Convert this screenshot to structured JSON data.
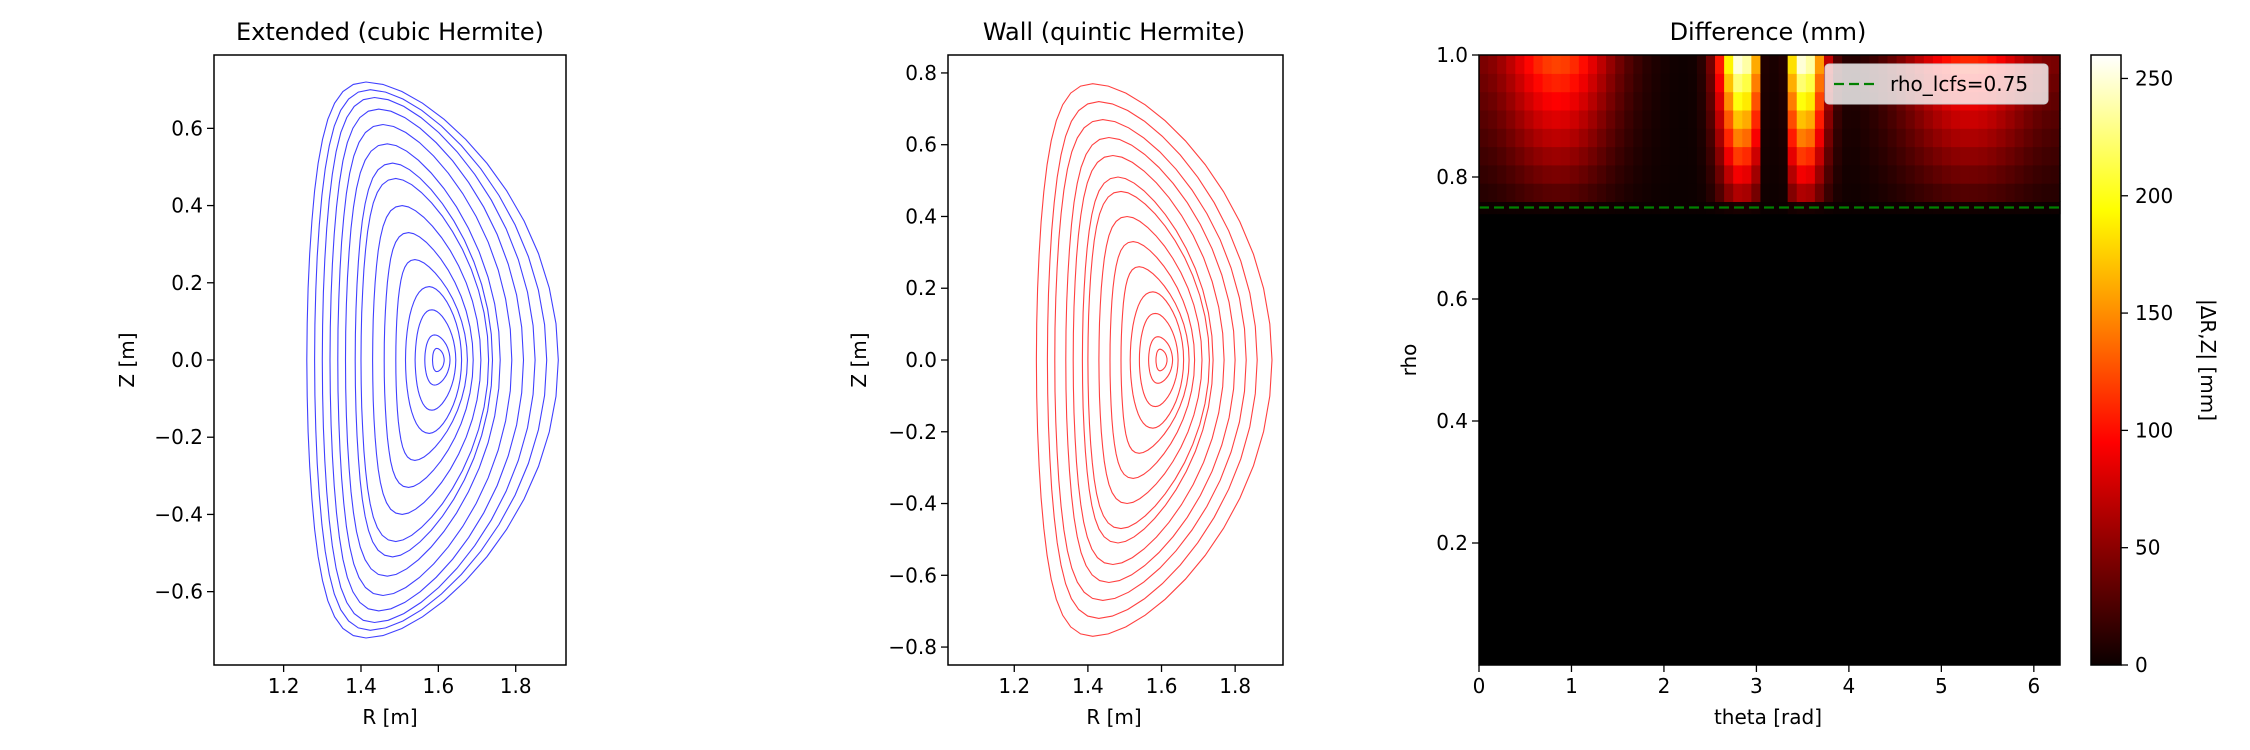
{
  "chart_data": [
    {
      "type": "contour",
      "title": "Extended (cubic Hermite)",
      "xlabel": "R [m]",
      "ylabel": "Z [m]",
      "xlim": [
        1.02,
        1.93
      ],
      "ylim": [
        -0.79,
        0.79
      ],
      "xticks": [
        1.2,
        1.4,
        1.6,
        1.8
      ],
      "yticks": [
        -0.6,
        -0.4,
        -0.2,
        0.0,
        0.2,
        0.4,
        0.6
      ],
      "xtick_labels": [
        "1.2",
        "1.4",
        "1.6",
        "1.8"
      ],
      "ytick_labels": [
        "−0.6",
        "−0.4",
        "−0.2",
        "0.0",
        "0.2",
        "0.4",
        "0.6"
      ],
      "color": "#4040ff",
      "axis_center_R": 1.6,
      "contours": [
        {
          "rho": 0.05,
          "outer_R": 1.615,
          "inner_R": 1.585,
          "height": 0.03
        },
        {
          "rho": 0.1,
          "outer_R": 1.63,
          "inner_R": 1.565,
          "height": 0.065
        },
        {
          "rho": 0.2,
          "outer_R": 1.645,
          "inner_R": 1.54,
          "height": 0.13
        },
        {
          "rho": 0.3,
          "outer_R": 1.66,
          "inner_R": 1.515,
          "height": 0.19
        },
        {
          "rho": 0.4,
          "outer_R": 1.675,
          "inner_R": 1.49,
          "height": 0.26
        },
        {
          "rho": 0.5,
          "outer_R": 1.69,
          "inner_R": 1.46,
          "height": 0.33
        },
        {
          "rho": 0.6,
          "outer_R": 1.71,
          "inner_R": 1.43,
          "height": 0.4
        },
        {
          "rho": 0.7,
          "outer_R": 1.73,
          "inner_R": 1.4,
          "height": 0.47
        },
        {
          "rho": 0.75,
          "outer_R": 1.74,
          "inner_R": 1.385,
          "height": 0.51
        },
        {
          "rho": 0.8,
          "outer_R": 1.76,
          "inner_R": 1.36,
          "height": 0.56
        },
        {
          "rho": 0.85,
          "outer_R": 1.79,
          "inner_R": 1.34,
          "height": 0.61
        },
        {
          "rho": 0.9,
          "outer_R": 1.82,
          "inner_R": 1.32,
          "height": 0.65
        },
        {
          "rho": 0.95,
          "outer_R": 1.85,
          "inner_R": 1.3,
          "height": 0.68
        },
        {
          "rho": 1.0,
          "outer_R": 1.88,
          "inner_R": 1.28,
          "height": 0.7
        },
        {
          "rho": 1.05,
          "outer_R": 1.91,
          "inner_R": 1.26,
          "height": 0.72
        }
      ]
    },
    {
      "type": "contour",
      "title": "Wall (quintic Hermite)",
      "xlabel": "R [m]",
      "ylabel": "Z [m]",
      "xlim": [
        1.02,
        1.93
      ],
      "ylim": [
        -0.85,
        0.85
      ],
      "xticks": [
        1.2,
        1.4,
        1.6,
        1.8
      ],
      "yticks": [
        -0.8,
        -0.6,
        -0.4,
        -0.2,
        0.0,
        0.2,
        0.4,
        0.6,
        0.8
      ],
      "xtick_labels": [
        "1.2",
        "1.4",
        "1.6",
        "1.8"
      ],
      "ytick_labels": [
        "−0.8",
        "−0.6",
        "−0.4",
        "−0.2",
        "0.0",
        "0.2",
        "0.4",
        "0.6",
        "0.8"
      ],
      "color": "#ff4040",
      "axis_center_R": 1.6,
      "contours": [
        {
          "rho": 0.05,
          "outer_R": 1.615,
          "inner_R": 1.585,
          "height": 0.03
        },
        {
          "rho": 0.1,
          "outer_R": 1.63,
          "inner_R": 1.565,
          "height": 0.065
        },
        {
          "rho": 0.2,
          "outer_R": 1.645,
          "inner_R": 1.54,
          "height": 0.13
        },
        {
          "rho": 0.3,
          "outer_R": 1.66,
          "inner_R": 1.515,
          "height": 0.19
        },
        {
          "rho": 0.4,
          "outer_R": 1.675,
          "inner_R": 1.49,
          "height": 0.26
        },
        {
          "rho": 0.5,
          "outer_R": 1.69,
          "inner_R": 1.46,
          "height": 0.33
        },
        {
          "rho": 0.6,
          "outer_R": 1.71,
          "inner_R": 1.43,
          "height": 0.4
        },
        {
          "rho": 0.7,
          "outer_R": 1.73,
          "inner_R": 1.4,
          "height": 0.47
        },
        {
          "rho": 0.75,
          "outer_R": 1.74,
          "inner_R": 1.385,
          "height": 0.51
        },
        {
          "rho": 0.8,
          "outer_R": 1.77,
          "inner_R": 1.36,
          "height": 0.57
        },
        {
          "rho": 0.85,
          "outer_R": 1.8,
          "inner_R": 1.34,
          "height": 0.62
        },
        {
          "rho": 0.9,
          "outer_R": 1.83,
          "inner_R": 1.31,
          "height": 0.67
        },
        {
          "rho": 0.95,
          "outer_R": 1.86,
          "inner_R": 1.29,
          "height": 0.72
        },
        {
          "rho": 1.0,
          "outer_R": 1.9,
          "inner_R": 1.26,
          "height": 0.77
        }
      ]
    },
    {
      "type": "heatmap",
      "title": "Difference (mm)",
      "xlabel": "theta [rad]",
      "ylabel": "rho",
      "colorbar_label": "|ΔR,Z| [mm]",
      "colormap": "hot",
      "xlim": [
        0,
        6.283
      ],
      "ylim": [
        0,
        1.0
      ],
      "clim": [
        0,
        260
      ],
      "xticks": [
        0,
        1,
        2,
        3,
        4,
        5,
        6
      ],
      "yticks": [
        0.2,
        0.4,
        0.6,
        0.8,
        1.0
      ],
      "xtick_labels": [
        "0",
        "1",
        "2",
        "3",
        "4",
        "5",
        "6"
      ],
      "ytick_labels": [
        "0.2",
        "0.4",
        "0.6",
        "0.8",
        "1.0"
      ],
      "colorbar_ticks": [
        0,
        50,
        100,
        150,
        200,
        250
      ],
      "colorbar_tick_labels": [
        "0",
        "50",
        "100",
        "150",
        "200",
        "250"
      ],
      "n_theta": 64,
      "rho_levels": [
        0.76,
        0.79,
        0.82,
        0.85,
        0.88,
        0.91,
        0.94,
        0.97,
        1.0
      ],
      "region_zero_below_rho": 0.76,
      "peaks": [
        {
          "theta": 0.85,
          "width": 0.45,
          "amplitude": 120
        },
        {
          "theta": 2.83,
          "width": 0.17,
          "amplitude": 255
        },
        {
          "theta": 3.52,
          "width": 0.16,
          "amplitude": 255
        },
        {
          "theta": 5.3,
          "width": 0.55,
          "amplitude": 110
        }
      ],
      "legend": {
        "label": "rho_lcfs=0.75",
        "location": "upper right"
      },
      "hline": {
        "y": 0.75,
        "color": "#008000",
        "style": "dashed"
      }
    }
  ]
}
